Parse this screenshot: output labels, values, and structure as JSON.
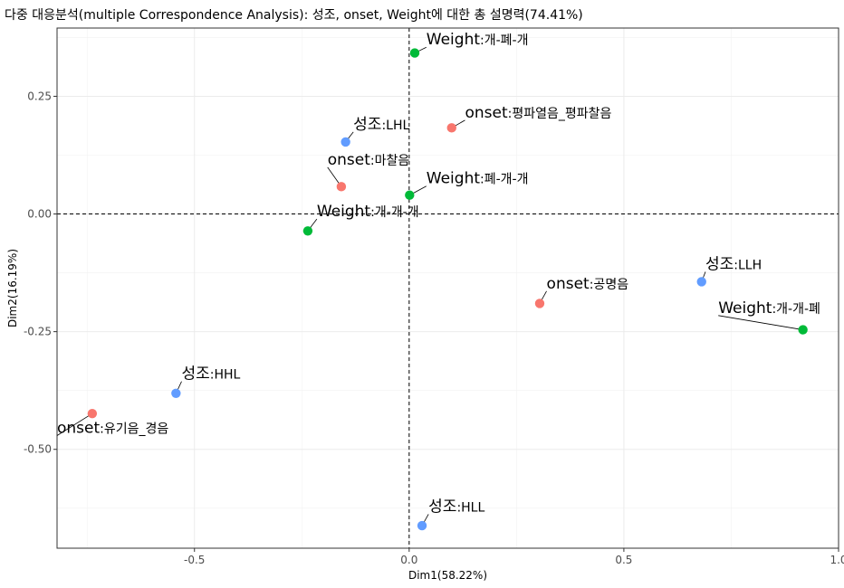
{
  "chart_data": {
    "type": "scatter",
    "title": "다중 대응분석(multiple Correspondence Analysis): 성조, onset, Weight에 대한 총 설명력(74.41%)",
    "xlabel": "Dim1(58.22%)",
    "ylabel": "Dim2(16.19%)",
    "xlim": [
      -0.82,
      1.0
    ],
    "ylim": [
      -0.71,
      0.395
    ],
    "xticks": [
      -0.5,
      0.0,
      0.5,
      1.0
    ],
    "xtick_labels": [
      "-0.5",
      "0.0",
      "0.5",
      "1.0"
    ],
    "yticks": [
      -0.5,
      -0.25,
      0.0,
      0.25
    ],
    "ytick_labels": [
      "-0.50",
      "-0.25",
      "0.00",
      "0.25"
    ],
    "grid": true,
    "reference_lines": {
      "x": 0,
      "y": 0,
      "style": "dashed"
    },
    "colors": {
      "onset": "#F8766D",
      "성조": "#619CFF",
      "Weight": "#00BA38"
    },
    "points": [
      {
        "group": "Weight",
        "prefix": "Weight",
        "suffix": ":개-폐-개",
        "x": 0.013,
        "y": 0.342,
        "color": "#00BA38",
        "lx": 0.04,
        "ly": 0.36
      },
      {
        "group": "onset",
        "prefix": "onset",
        "suffix": ":평파열음_평파찰음",
        "x": 0.099,
        "y": 0.183,
        "color": "#F8766D",
        "lx": 0.13,
        "ly": 0.205
      },
      {
        "group": "성조",
        "prefix": "성조",
        "suffix": ":LHL",
        "x": -0.148,
        "y": 0.153,
        "color": "#619CFF",
        "lx": -0.13,
        "ly": 0.18
      },
      {
        "group": "onset",
        "prefix": "onset",
        "suffix": ":마찰음",
        "x": -0.158,
        "y": 0.058,
        "color": "#F8766D",
        "lx": -0.19,
        "ly": 0.105
      },
      {
        "group": "Weight",
        "prefix": "Weight",
        "suffix": ":폐-개-개",
        "x": 0.001,
        "y": 0.04,
        "color": "#00BA38",
        "lx": 0.04,
        "ly": 0.065
      },
      {
        "group": "Weight",
        "prefix": "Weight",
        "suffix": ":개-개-개",
        "x": -0.236,
        "y": -0.036,
        "color": "#00BA38",
        "lx": -0.215,
        "ly": -0.005
      },
      {
        "group": "onset",
        "prefix": "onset",
        "suffix": ":공명음",
        "x": 0.304,
        "y": -0.19,
        "color": "#F8766D",
        "lx": 0.32,
        "ly": -0.158
      },
      {
        "group": "성조",
        "prefix": "성조",
        "suffix": ":LLH",
        "x": 0.681,
        "y": -0.144,
        "color": "#619CFF",
        "lx": 0.69,
        "ly": -0.117
      },
      {
        "group": "Weight",
        "prefix": "Weight",
        "suffix": ":개-개-폐",
        "x": 0.917,
        "y": -0.246,
        "color": "#00BA38",
        "lx": 0.72,
        "ly": -0.21
      },
      {
        "group": "성조",
        "prefix": "성조",
        "suffix": ":HHL",
        "x": -0.543,
        "y": -0.381,
        "color": "#619CFF",
        "lx": -0.53,
        "ly": -0.35
      },
      {
        "group": "onset",
        "prefix": "onset",
        "suffix": ":유기음_경음",
        "x": -0.738,
        "y": -0.424,
        "color": "#F8766D",
        "lx": -0.82,
        "ly": -0.465
      },
      {
        "group": "성조",
        "prefix": "성조",
        "suffix": ":HLL",
        "x": 0.03,
        "y": -0.662,
        "color": "#619CFF",
        "lx": 0.045,
        "ly": -0.632
      }
    ]
  }
}
